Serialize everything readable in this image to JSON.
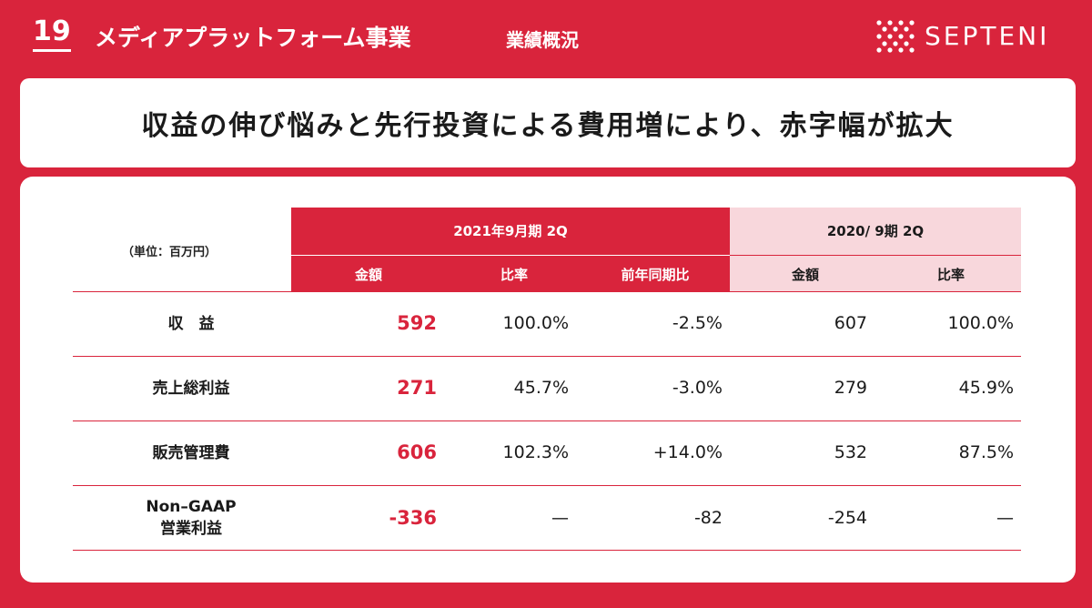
{
  "header": {
    "page_number": "19",
    "section_title": "メディアプラットフォーム事業",
    "section_sub": "業績概況",
    "logo_text": "SEPTENI"
  },
  "headline": "収益の伸び悩みと先行投資による費用増により、赤字幅が拡大",
  "table": {
    "unit": "（単位：百万円）",
    "period_current": "2021年9月期 2Q",
    "period_previous": "2020/ 9期 2Q",
    "columns_current": [
      "金額",
      "比率",
      "前年同期比"
    ],
    "columns_previous": [
      "金額",
      "比率"
    ],
    "rows": [
      {
        "label": "収　益",
        "label2": "",
        "amount": "592",
        "ratio": "100.0%",
        "yoy": "-2.5%",
        "prev_amount": "607",
        "prev_ratio": "100.0%"
      },
      {
        "label": "売上総利益",
        "label2": "",
        "amount": "271",
        "ratio": "45.7%",
        "yoy": "-3.0%",
        "prev_amount": "279",
        "prev_ratio": "45.9%"
      },
      {
        "label": "販売管理費",
        "label2": "",
        "amount": "606",
        "ratio": "102.3%",
        "yoy": "+14.0%",
        "prev_amount": "532",
        "prev_ratio": "87.5%"
      },
      {
        "label": "Non–GAAP",
        "label2": "営業利益",
        "amount": "-336",
        "ratio": "—",
        "yoy": "-82",
        "prev_amount": "-254",
        "prev_ratio": "—"
      }
    ]
  },
  "colors": {
    "brand_red": "#d9243c",
    "light_pink": "#f8d7dc"
  }
}
